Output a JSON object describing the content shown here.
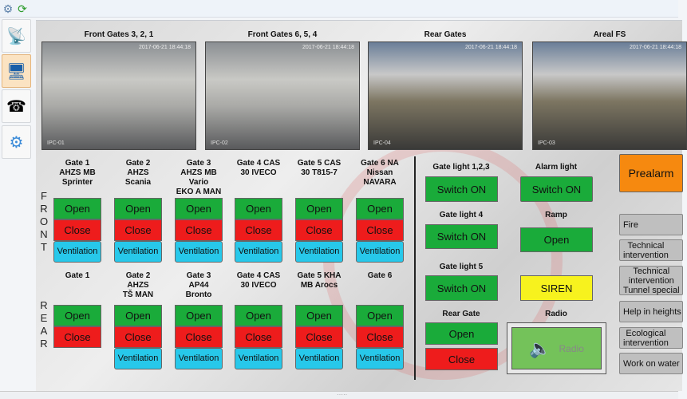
{
  "toolbar": {
    "icons": [
      "settings-refresh-icon",
      "refresh-icon"
    ]
  },
  "sidebar": {
    "items": [
      {
        "icon": "antenna-icon"
      },
      {
        "icon": "monitor-icon",
        "active": true
      },
      {
        "icon": "phone-icon"
      },
      {
        "icon": "settings-mail-icon"
      }
    ]
  },
  "cameras": [
    {
      "title": "Front Gates 3, 2, 1",
      "timestamp": "2017-06-21 18:44:18",
      "id": "IPC-01"
    },
    {
      "title": "Front Gates 6, 5, 4",
      "timestamp": "2017-06-21 18:44:18",
      "id": "IPC-02"
    },
    {
      "title": "Rear Gates",
      "timestamp": "2017-06-21 18:44:18",
      "id": "IPC-04"
    },
    {
      "title": "Areal FS",
      "timestamp": "2017-06-21 18:44:18",
      "id": "IPC-03"
    }
  ],
  "front": {
    "side_label": "FRONT",
    "gates": [
      {
        "label": "Gate 1\nAHZS MB\nSprinter"
      },
      {
        "label": "Gate 2\nAHZS\nScania"
      },
      {
        "label": "Gate 3\nAHZS MB\nVario\nEKO A MAN"
      },
      {
        "label": "Gate 4  CAS\n30 IVECO"
      },
      {
        "label": "Gate 5  CAS\n30 T815-7"
      },
      {
        "label": "Gate 6  NA\nNissan\nNAVARA"
      }
    ]
  },
  "rear": {
    "side_label": "REAR",
    "gates": [
      {
        "label": "Gate 1",
        "ventilation": false
      },
      {
        "label": "Gate 2\nAHZS\nTŠ MAN",
        "ventilation": true
      },
      {
        "label": "Gate 3\nAP44\nBronto",
        "ventilation": true
      },
      {
        "label": "Gate 4  CAS\n30 IVECO",
        "ventilation": true
      },
      {
        "label": "Gate 5  KHA\nMB Arocs",
        "ventilation": true
      },
      {
        "label": "Gate 6",
        "ventilation": true
      }
    ]
  },
  "buttons": {
    "open": "Open",
    "close": "Close",
    "ventilation": "Ventilation",
    "switch_on": "Switch ON",
    "siren": "SIREN",
    "radio": "Radio"
  },
  "controls": {
    "gate_light_123": "Gate light 1,2,3",
    "gate_light_4": "Gate light 4",
    "gate_light_5": "Gate light 5",
    "rear_gate": "Rear Gate",
    "alarm_light": "Alarm light",
    "ramp": "Ramp",
    "radio": "Radio"
  },
  "alarms": {
    "prealarm": "Prealarm",
    "items": [
      "Fire",
      "Technical\nintervention",
      "Technical\nintervention\nTunnel special",
      "Help in heights",
      "Ecological\nintervention",
      "Work on water"
    ]
  },
  "colors": {
    "open": "#1aab3a",
    "close": "#ee1c1c",
    "ventilation": "#27c8ea",
    "siren": "#f7f21e",
    "prealarm": "#f6890f"
  }
}
